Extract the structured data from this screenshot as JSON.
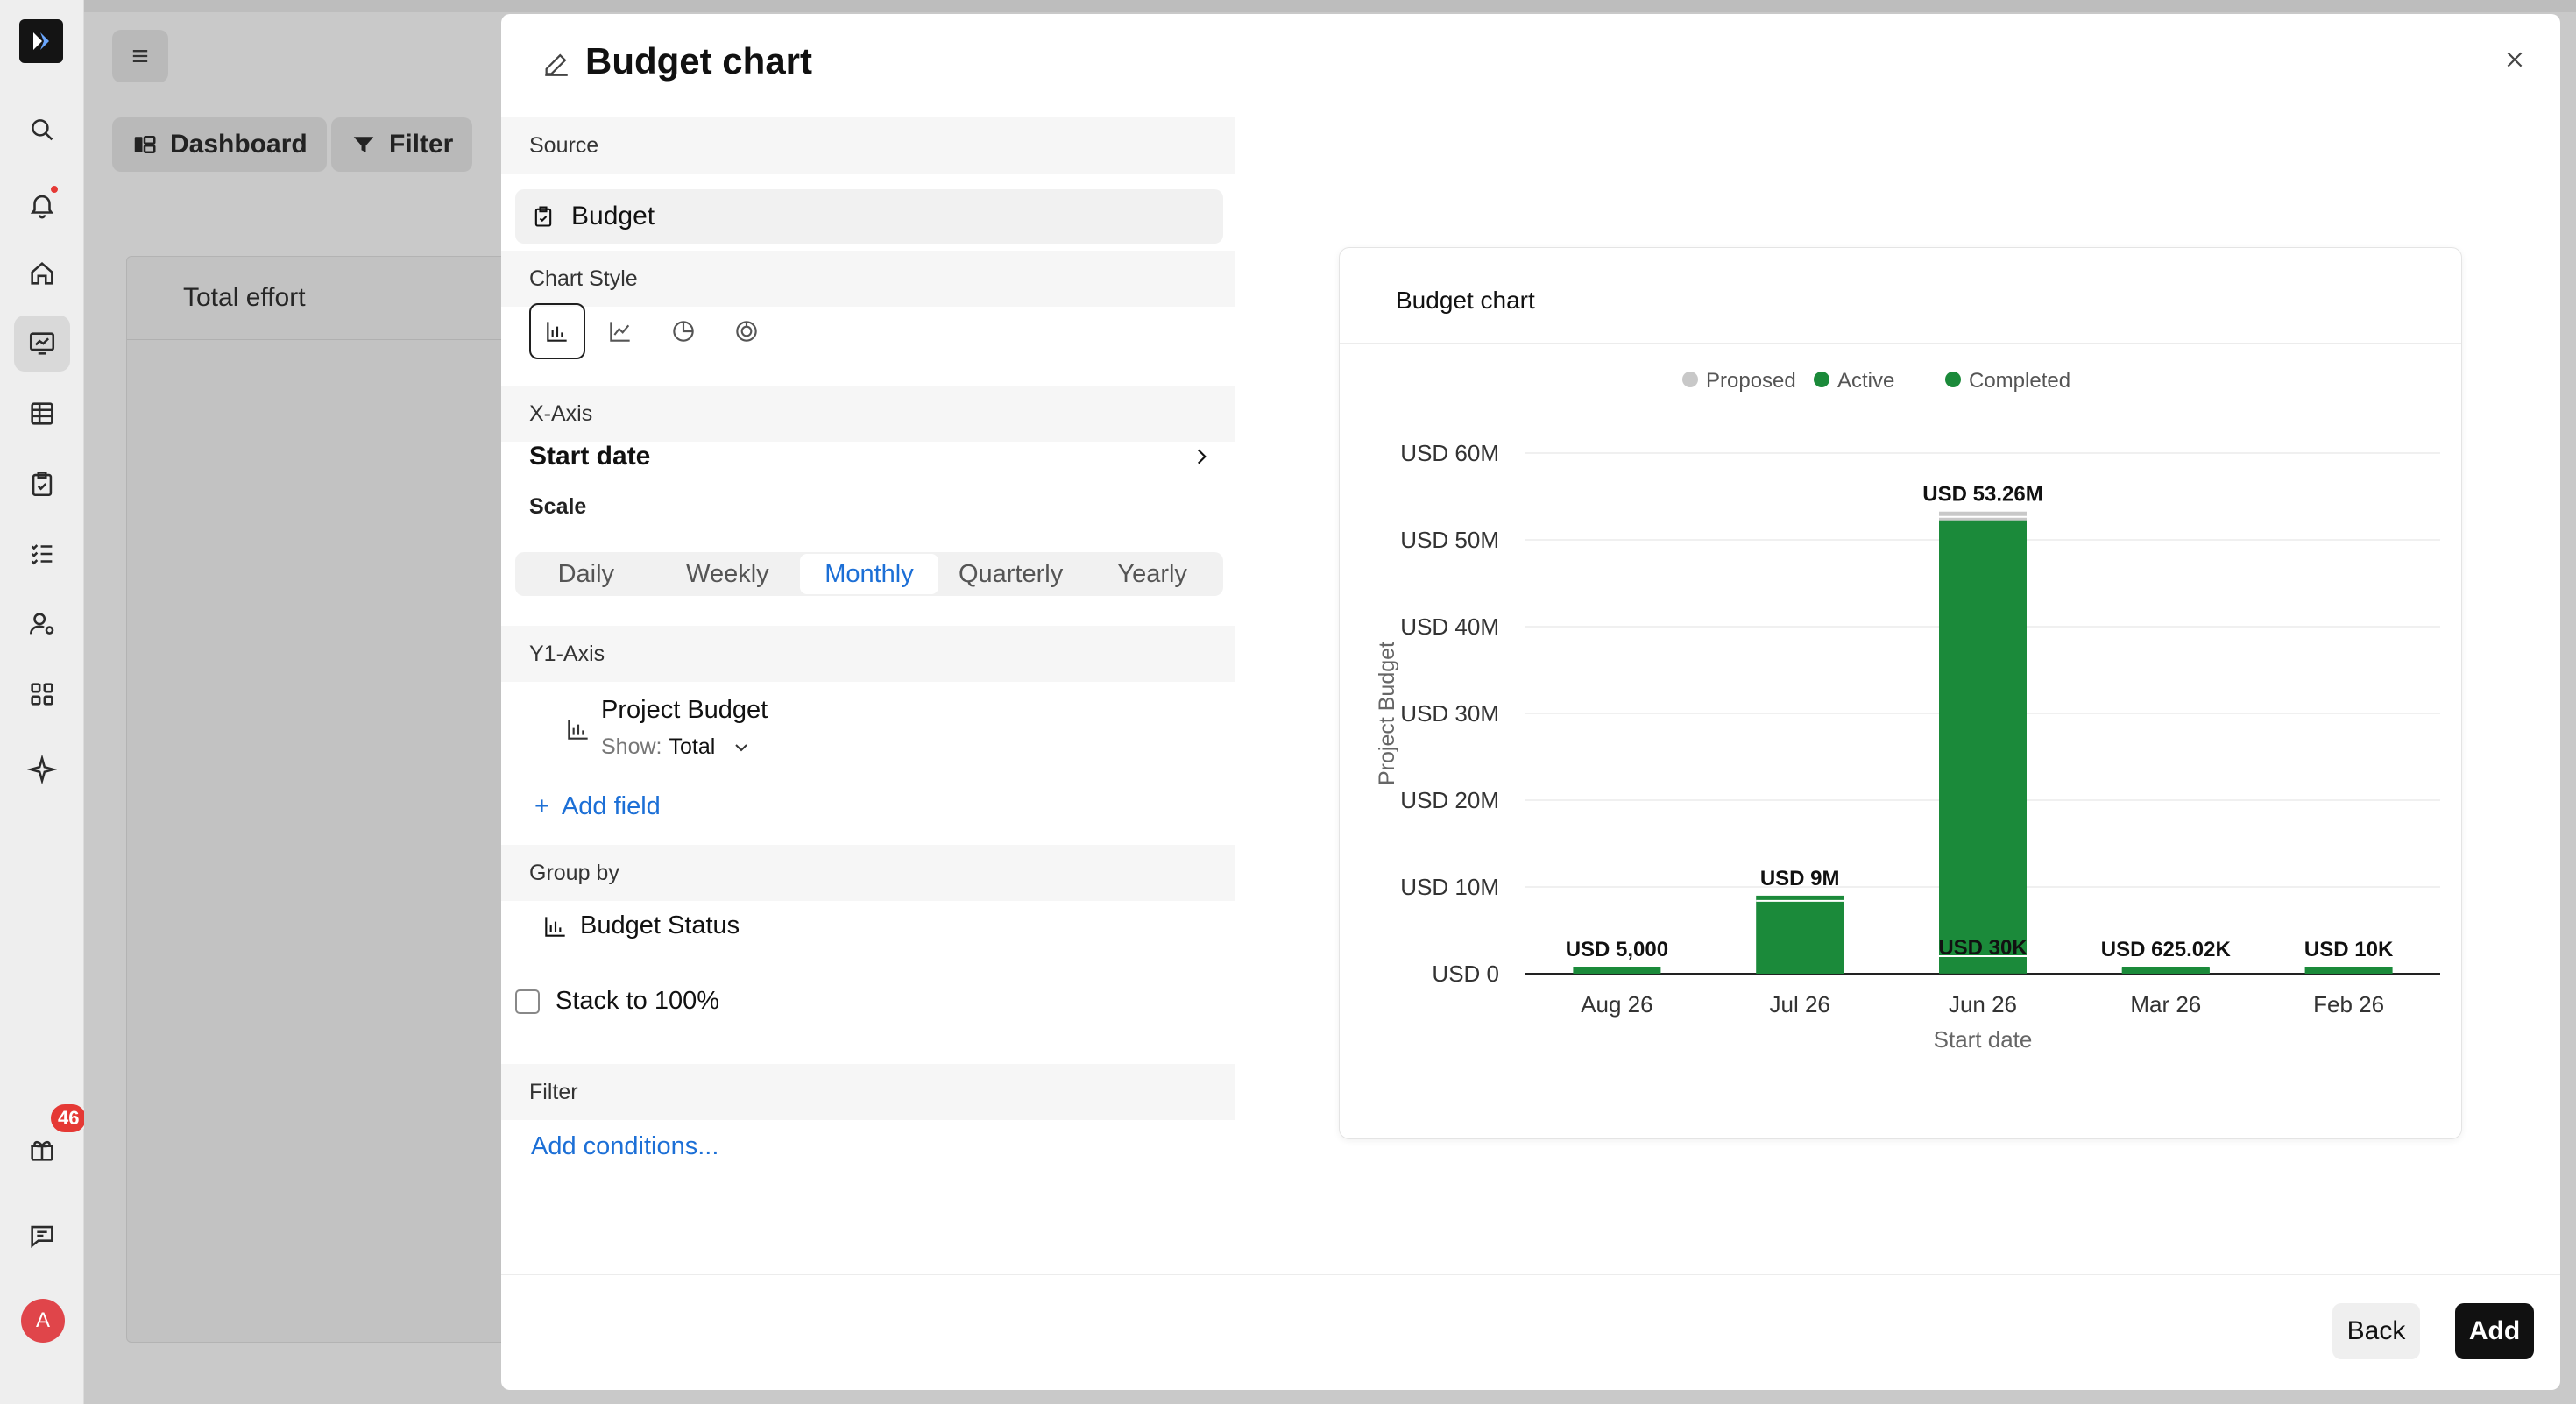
{
  "sidebar": {
    "notification_count": "46",
    "avatar_letter": "A",
    "accent_dot_color": "#e53935"
  },
  "background": {
    "dashboard_label": "Dashboard",
    "filter_label": "Filter",
    "card_title": "Total effort"
  },
  "modal": {
    "title": "Budget chart",
    "source_label": "Source",
    "source_value": "Budget",
    "chart_style_label": "Chart Style",
    "chart_styles": [
      "bar-chart-icon",
      "line-chart-icon",
      "pie-chart-icon",
      "donut-chart-icon"
    ],
    "xaxis_label": "X-Axis",
    "xaxis_value": "Start date",
    "scale_label": "Scale",
    "scale_options": [
      "Daily",
      "Weekly",
      "Monthly",
      "Quarterly",
      "Yearly"
    ],
    "scale_selected": "Monthly",
    "y1_label": "Y1-Axis",
    "y1_field": "Project Budget",
    "y1_show_prefix": "Show:",
    "y1_show_value": "Total",
    "add_field": "Add field",
    "group_by_label": "Group by",
    "group_by_value": "Budget Status",
    "stack_label": "Stack to 100%",
    "stack_checked": false,
    "filter_label": "Filter",
    "add_conditions": "Add conditions...",
    "back_label": "Back",
    "add_label": "Add"
  },
  "chart_data": {
    "type": "bar",
    "title": "Budget chart",
    "xlabel": "Start date",
    "ylabel": "Project Budget",
    "categories": [
      "Aug 26",
      "Jul 26",
      "Jun 26",
      "Mar 26",
      "Feb 26"
    ],
    "series": [
      {
        "name": "Proposed",
        "color": "#c8c8c8",
        "values": [
          0,
          0,
          1.0,
          0,
          0
        ]
      },
      {
        "name": "Active",
        "color": "#1b8a3a",
        "values": [
          0.005,
          9.0,
          52.23,
          0.625,
          0.01
        ]
      },
      {
        "name": "Completed",
        "color": "#1b8a3a",
        "values": [
          0,
          0,
          0.03,
          0,
          0
        ]
      }
    ],
    "bar_labels": [
      "USD 5,000",
      "USD 9M",
      "USD 53.26M",
      "USD 625.02K",
      "USD 10K"
    ],
    "inner_labels": [
      "",
      "",
      "USD 30K",
      "",
      ""
    ],
    "yticks": [
      0,
      10,
      20,
      30,
      40,
      50,
      60
    ],
    "ytick_labels": [
      "USD 0",
      "USD 10M",
      "USD 20M",
      "USD 30M",
      "USD 40M",
      "USD 50M",
      "USD 60M"
    ],
    "ylim": [
      0,
      60
    ],
    "legend_position": "top-center",
    "grid": true
  }
}
